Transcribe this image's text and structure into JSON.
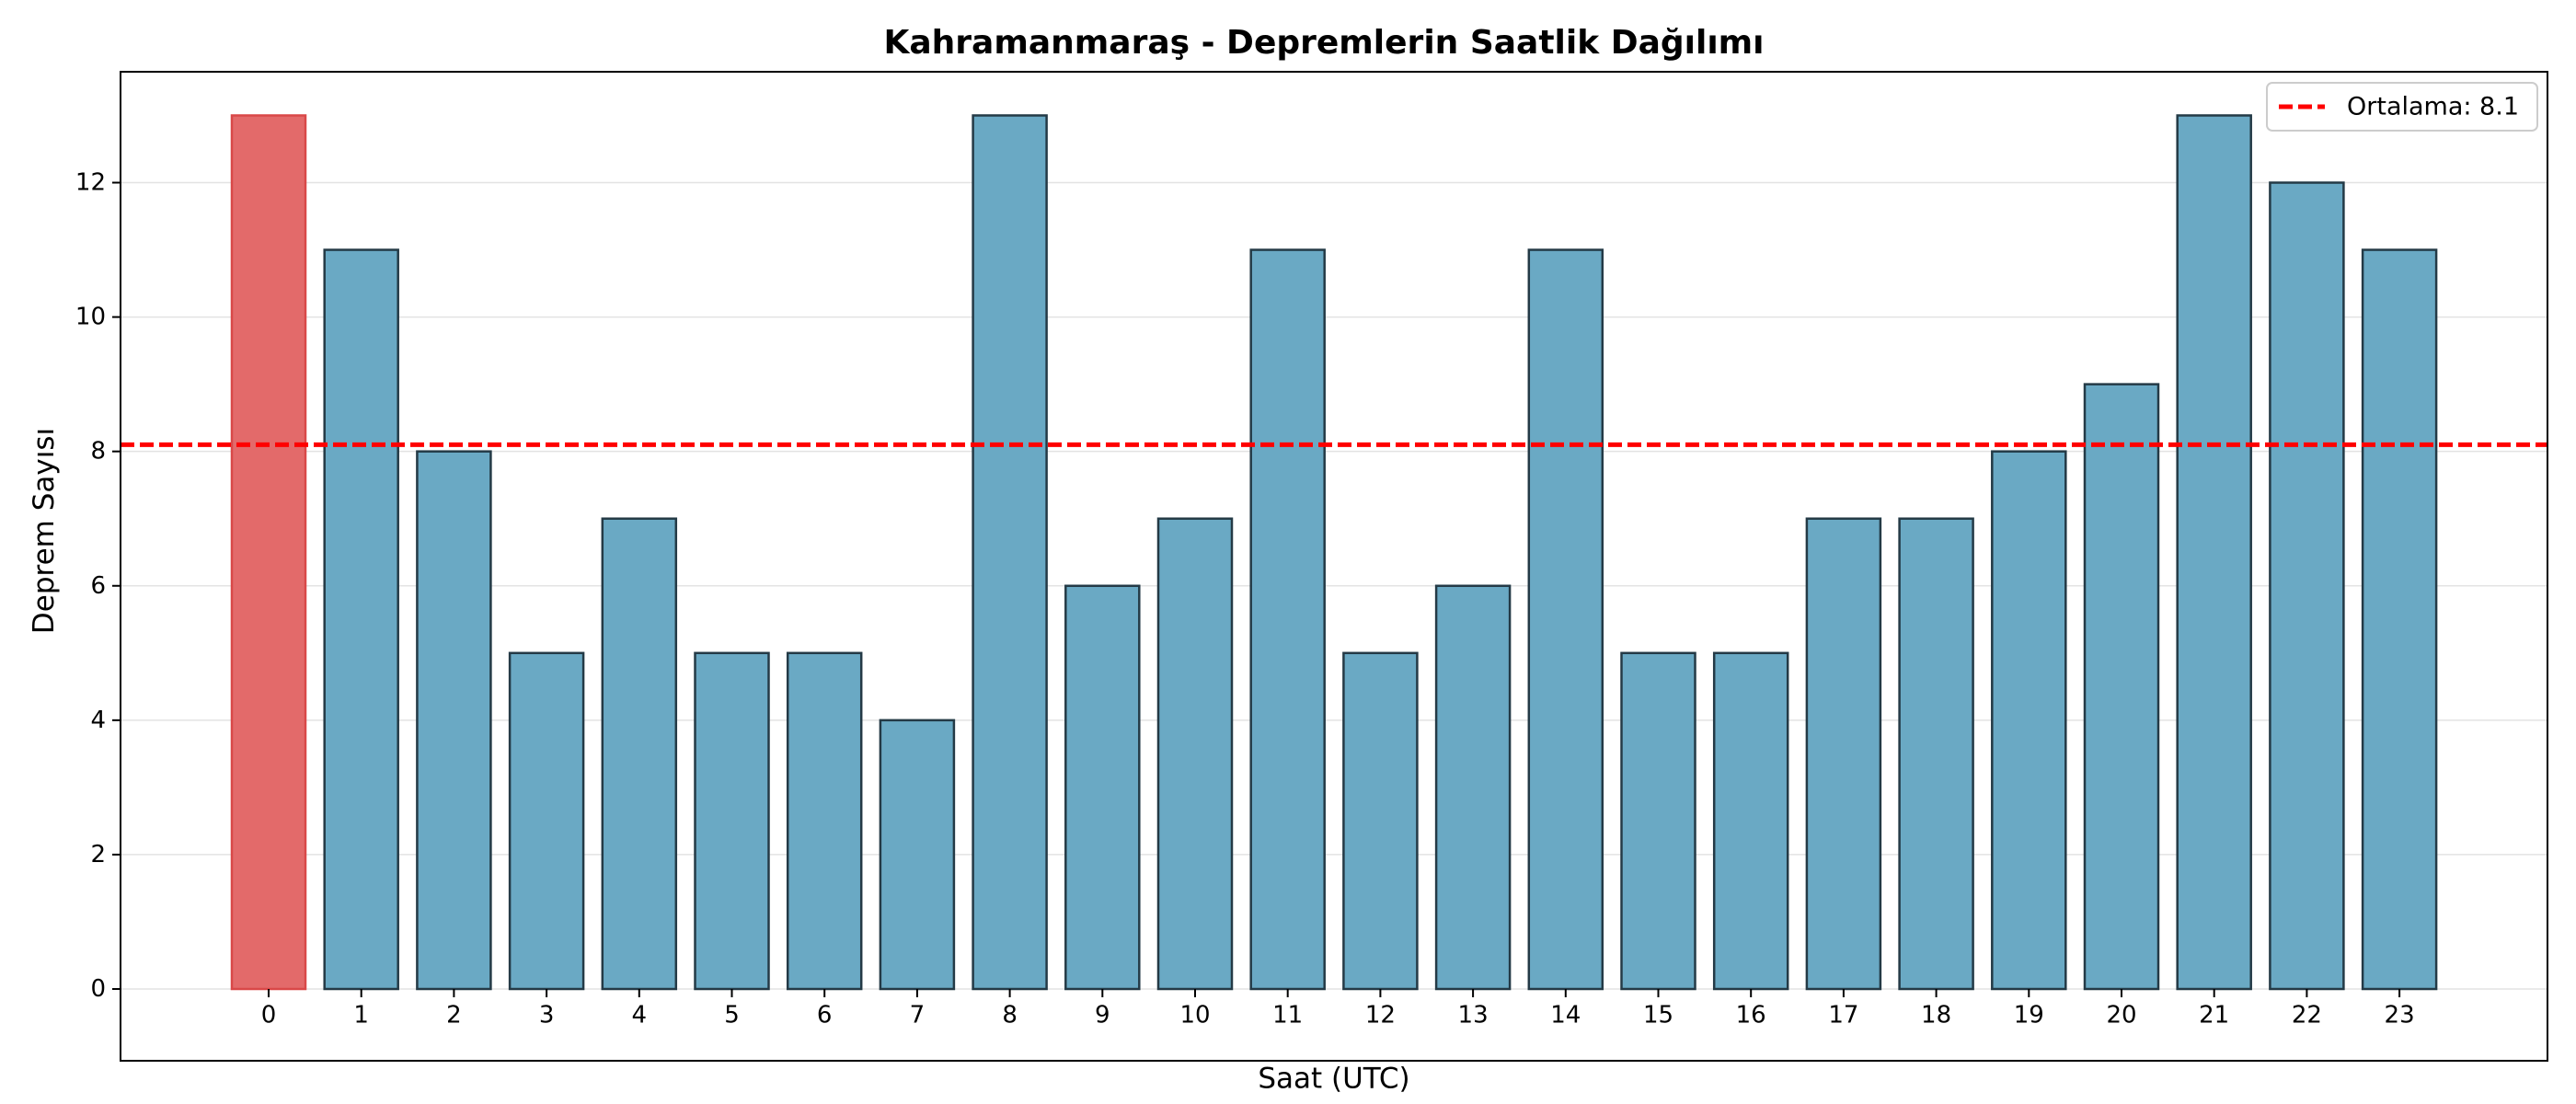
{
  "chart_data": {
    "type": "bar",
    "title": "Kahramanmaraş - Depremlerin Saatlik Dağılımı",
    "xlabel": "Saat (UTC)",
    "ylabel": "Deprem Sayısı",
    "categories": [
      "0",
      "1",
      "2",
      "3",
      "4",
      "5",
      "6",
      "7",
      "8",
      "9",
      "10",
      "11",
      "12",
      "13",
      "14",
      "15",
      "16",
      "17",
      "18",
      "19",
      "20",
      "21",
      "22",
      "23"
    ],
    "values": [
      13,
      11,
      8,
      5,
      7,
      5,
      5,
      4,
      13,
      6,
      7,
      11,
      5,
      6,
      11,
      5,
      5,
      7,
      7,
      8,
      9,
      13,
      12,
      11
    ],
    "highlight_index": 0,
    "ylim": [
      0,
      13.65
    ],
    "yticks": [
      0,
      2,
      4,
      6,
      8,
      10,
      12
    ],
    "grid": "y",
    "mean_line": {
      "value": 8.1,
      "label": "Ortalama: 8.1",
      "color": "#ff0000",
      "style": "dashed"
    },
    "legend_position": "top-right",
    "colors": {
      "bar": "#6aa9c4",
      "highlight": "#e36a6a",
      "edge": "#243a46"
    }
  }
}
